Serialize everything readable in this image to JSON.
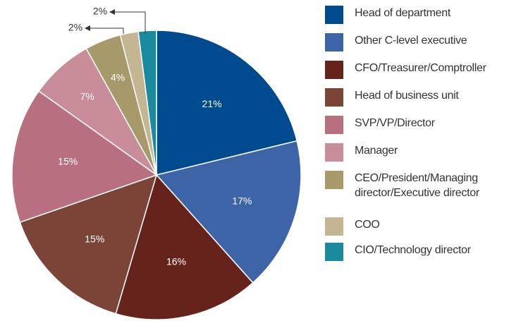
{
  "chart_data": {
    "type": "pie",
    "categories": [
      "Head of department",
      "Other C-level executive",
      "CFO/Treasurer/Comptroller",
      "Head of business unit",
      "SVP/VP/Director",
      "Manager",
      "CEO/President/Managing director/Executive director",
      "COO",
      "CIO/Technology director"
    ],
    "values": [
      21,
      17,
      16,
      15,
      15,
      7,
      4,
      2,
      2
    ],
    "value_labels": [
      "21%",
      "17%",
      "16%",
      "15%",
      "15%",
      "7%",
      "4%",
      "2%",
      "2%"
    ],
    "colors": [
      "#004a8f",
      "#3e64a8",
      "#66231b",
      "#7b4437",
      "#b86f7f",
      "#c98d99",
      "#a8996b",
      "#c4b593",
      "#1a8a9f"
    ]
  }
}
